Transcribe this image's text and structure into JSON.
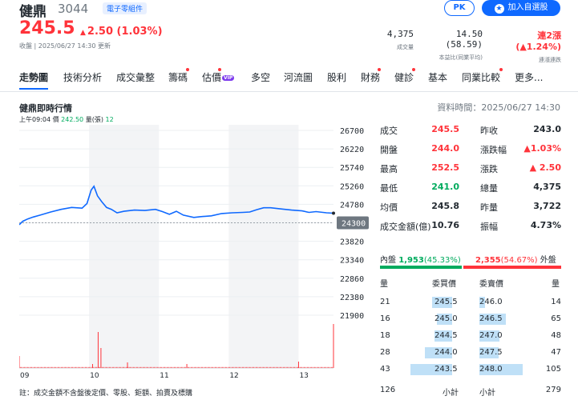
{
  "header": {
    "name": "健鼎",
    "code": "3044",
    "industry_tag": "電子零組件",
    "pk_label": "PK",
    "watch_label": "加入自選股",
    "price": "245.5",
    "change": "2.50 (1.03%)",
    "change_arrow": "▲",
    "time_text": "收盤 | 2025/06/27 14:30 更新",
    "metrics": [
      {
        "value": "4,375",
        "label": "成交量"
      },
      {
        "value": "14.50 (58.59)",
        "label": "本益比(同業平均)"
      },
      {
        "value": "連2漲 (▲1.24%)",
        "label": "連漲連跌"
      }
    ]
  },
  "tabs": [
    "走勢圖",
    "技術分析",
    "成交彙整",
    "籌碼",
    "估價",
    "多空",
    "河流圖",
    "股利",
    "財務",
    "健診",
    "基本",
    "同業比較",
    "更多..."
  ],
  "vip_label": "VIP",
  "chart": {
    "title": "健鼎即時行情",
    "data_time": "資料時間：2025/06/27 14:30",
    "legend_time": "上午09:04",
    "legend_price_label": "價",
    "legend_price": "242.50",
    "legend_vol_label": "量(張)",
    "legend_vol": "12",
    "note": "註：成交金額不含盤後定價、零股、鉅額、拍賣及標購",
    "ref_price_label": "24300"
  },
  "chart_data": {
    "type": "line",
    "y_ticks": [
      "26700",
      "26220",
      "25740",
      "25260",
      "24780",
      "24300",
      "23820",
      "23340",
      "22860",
      "22380",
      "21900"
    ],
    "y_values": [
      267.0,
      262.2,
      257.4,
      252.6,
      247.8,
      243.0,
      238.2,
      233.4,
      228.6,
      223.8,
      219.0
    ],
    "x_ticks": [
      "09",
      "10",
      "11",
      "12",
      "13"
    ],
    "x_tick_hours": [
      9,
      10,
      11,
      12,
      13
    ],
    "x_range_hours": [
      9,
      13.5
    ],
    "reference_price": 243.0,
    "price_series": [
      [
        9.0,
        242.5
      ],
      [
        9.05,
        243.4
      ],
      [
        9.12,
        244.0
      ],
      [
        9.2,
        244.5
      ],
      [
        9.3,
        245.0
      ],
      [
        9.45,
        245.8
      ],
      [
        9.6,
        246.5
      ],
      [
        9.75,
        247.0
      ],
      [
        9.9,
        246.8
      ],
      [
        9.97,
        248.0
      ],
      [
        10.03,
        251.5
      ],
      [
        10.07,
        252.5
      ],
      [
        10.12,
        250.0
      ],
      [
        10.18,
        248.5
      ],
      [
        10.25,
        247.0
      ],
      [
        10.32,
        246.5
      ],
      [
        10.4,
        245.6
      ],
      [
        10.5,
        246.0
      ],
      [
        10.65,
        246.3
      ],
      [
        10.8,
        246.2
      ],
      [
        10.95,
        246.5
      ],
      [
        11.05,
        245.9
      ],
      [
        11.15,
        245.2
      ],
      [
        11.25,
        246.0
      ],
      [
        11.35,
        245.0
      ],
      [
        11.5,
        244.4
      ],
      [
        11.6,
        244.6
      ],
      [
        11.75,
        244.8
      ],
      [
        11.9,
        245.4
      ],
      [
        12.05,
        245.6
      ],
      [
        12.2,
        245.7
      ],
      [
        12.3,
        245.8
      ],
      [
        12.4,
        246.4
      ],
      [
        12.5,
        246.9
      ],
      [
        12.6,
        246.9
      ],
      [
        12.75,
        246.6
      ],
      [
        12.9,
        246.3
      ],
      [
        13.05,
        246.1
      ],
      [
        13.15,
        245.7
      ],
      [
        13.25,
        245.9
      ],
      [
        13.4,
        245.6
      ],
      [
        13.5,
        245.5
      ]
    ],
    "volume_spikes": [
      [
        9.0,
        3
      ],
      [
        10.05,
        1
      ],
      [
        10.13,
        9
      ],
      [
        10.17,
        5
      ],
      [
        10.55,
        1.4
      ],
      [
        11.4,
        1
      ],
      [
        13.0,
        1.6
      ],
      [
        13.5,
        11
      ]
    ],
    "grid": true
  },
  "stats": [
    {
      "l1": "成交",
      "v1": "245.5",
      "c1": "red",
      "l2": "昨收",
      "v2": "243.0",
      "c2": "dark"
    },
    {
      "l1": "開盤",
      "v1": "244.0",
      "c1": "red",
      "l2": "漲跌幅",
      "v2": "▲1.03%",
      "c2": "red"
    },
    {
      "l1": "最高",
      "v1": "252.5",
      "c1": "red",
      "l2": "漲跌",
      "v2": "▲ 2.50",
      "c2": "red"
    },
    {
      "l1": "最低",
      "v1": "241.0",
      "c1": "green",
      "l2": "總量",
      "v2": "4,375",
      "c2": "dark"
    },
    {
      "l1": "均價",
      "v1": "245.8",
      "c1": "dark",
      "l2": "昨量",
      "v2": "3,722",
      "c2": "dark"
    },
    {
      "l1": "成交金額(億)",
      "v1": "10.76",
      "c1": "dark",
      "l2": "振幅",
      "v2": "4.73%",
      "c2": "dark"
    }
  ],
  "inner_outer": {
    "inner_label": "內盤",
    "inner_value": "1,953",
    "inner_pct": "(45.33%)",
    "outer_value": "2,355",
    "outer_pct": "(54.67%)",
    "outer_label": "外盤",
    "inner_ratio": 0.4533
  },
  "orderbook": {
    "headers": [
      "量",
      "委買價",
      "委賣價",
      "量"
    ],
    "rows": [
      {
        "bq": "21",
        "bp": "245.5",
        "sp": "246.0",
        "sq": "14",
        "bqn": 21,
        "sqn": 14
      },
      {
        "bq": "16",
        "bp": "245.0",
        "sp": "246.5",
        "sq": "65",
        "bqn": 16,
        "sqn": 65
      },
      {
        "bq": "18",
        "bp": "244.5",
        "sp": "247.0",
        "sq": "48",
        "bqn": 18,
        "sqn": 48
      },
      {
        "bq": "28",
        "bp": "244.0",
        "sp": "247.5",
        "sq": "47",
        "bqn": 28,
        "sqn": 47
      },
      {
        "bq": "43",
        "bp": "243.5",
        "sp": "248.0",
        "sq": "105",
        "bqn": 43,
        "sqn": 105
      }
    ],
    "buy_total": "126",
    "buy_total_label": "小計",
    "sell_total_label": "小計",
    "sell_total": "279"
  },
  "colors": {
    "up": "#ff333a",
    "down": "#00ab5e",
    "line": "#0f69ff",
    "accent": "#0f69ff",
    "orderbar": "#bfe0f7"
  }
}
